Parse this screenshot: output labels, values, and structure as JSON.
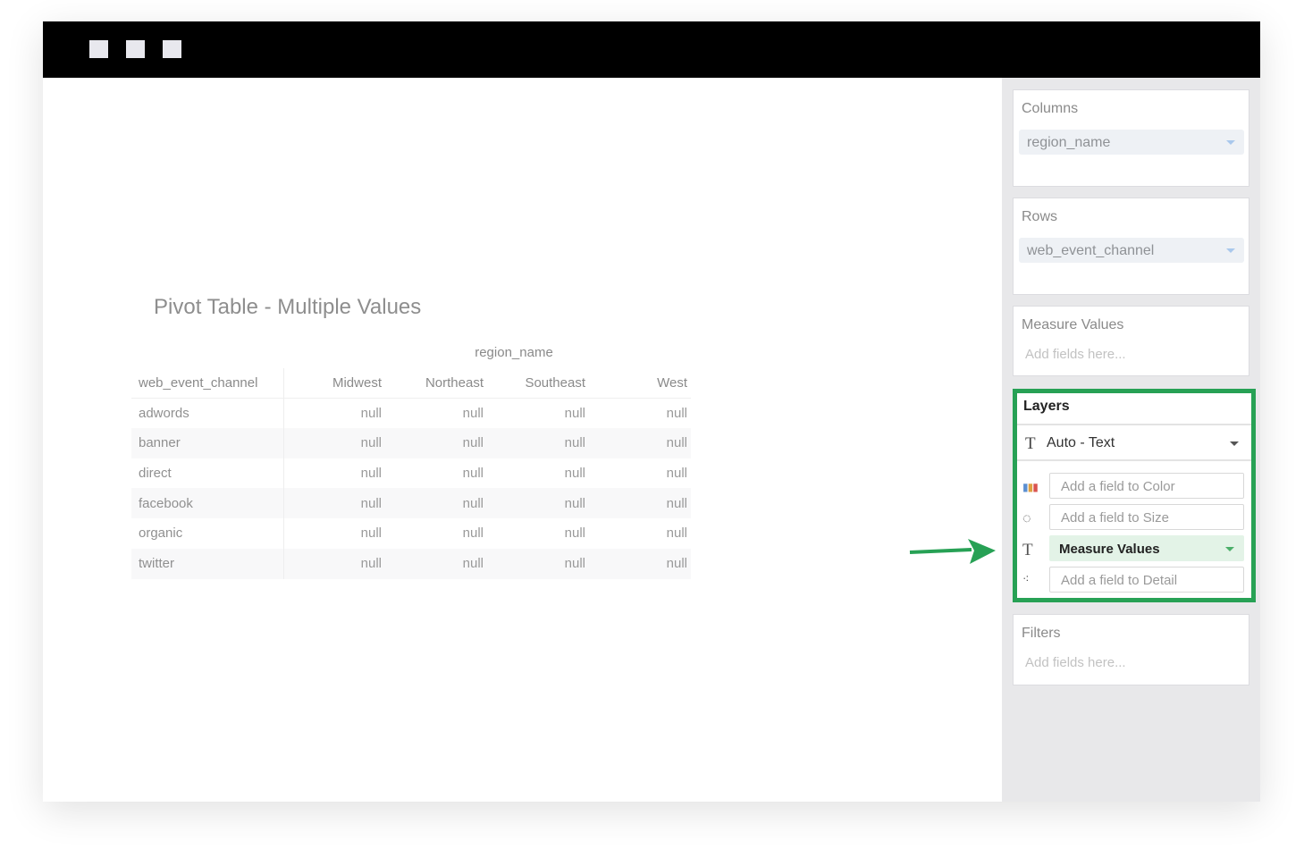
{
  "window": {
    "controls": [
      "square",
      "square",
      "square"
    ]
  },
  "chart": {
    "title": "Pivot Table - Multiple Values",
    "column_field": "region_name",
    "row_field": "web_event_channel",
    "columns": [
      "Midwest",
      "Northeast",
      "Southeast",
      "West"
    ],
    "rows": [
      {
        "label": "adwords",
        "values": [
          "null",
          "null",
          "null",
          "null"
        ]
      },
      {
        "label": "banner",
        "values": [
          "null",
          "null",
          "null",
          "null"
        ]
      },
      {
        "label": "direct",
        "values": [
          "null",
          "null",
          "null",
          "null"
        ]
      },
      {
        "label": "facebook",
        "values": [
          "null",
          "null",
          "null",
          "null"
        ]
      },
      {
        "label": "organic",
        "values": [
          "null",
          "null",
          "null",
          "null"
        ]
      },
      {
        "label": "twitter",
        "values": [
          "null",
          "null",
          "null",
          "null"
        ]
      }
    ]
  },
  "sidebar": {
    "columns": {
      "title": "Columns",
      "field": "region_name"
    },
    "rows": {
      "title": "Rows",
      "field": "web_event_channel"
    },
    "measure_values": {
      "title": "Measure Values",
      "placeholder": "Add fields here..."
    },
    "layers": {
      "title": "Layers",
      "type": "Auto - Text",
      "color": "Add a field to Color",
      "size": "Add a field to Size",
      "text": "Measure Values",
      "detail": "Add a field to Detail"
    },
    "filters": {
      "title": "Filters",
      "placeholder": "Add fields here..."
    }
  },
  "colors": {
    "highlight": "#27a155",
    "text_pill": "#e3f3e7"
  }
}
